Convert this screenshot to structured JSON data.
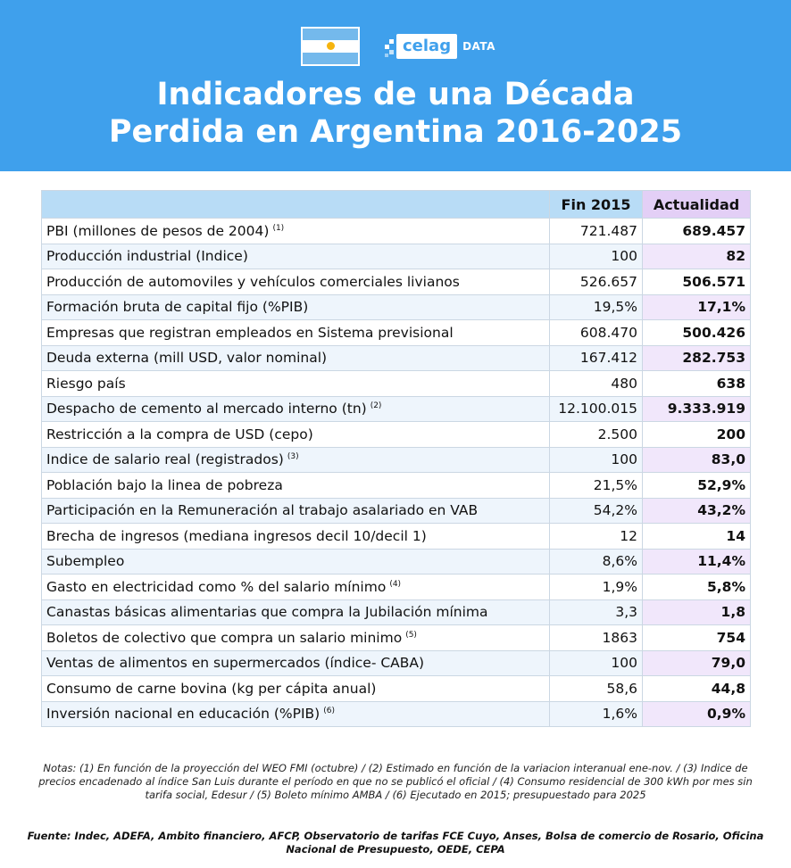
{
  "header": {
    "logo": {
      "brand": "celag",
      "suffix": "DATA"
    },
    "title_line1": "Indicadores de una Década",
    "title_line2": "Perdida en Argentina 2016-2025",
    "colors": {
      "header_bg": "#3fa0ec",
      "flag_blue": "#74b9ec",
      "flag_sun": "#f6b40e"
    }
  },
  "table": {
    "columns": [
      "",
      "Fin 2015",
      "Actualidad"
    ],
    "rows": [
      {
        "label": "PBI (millones de pesos de 2004)",
        "note": "(1)",
        "fin2015": "721.487",
        "actualidad": "689.457"
      },
      {
        "label": "Producción industrial (Indice)",
        "note": "",
        "fin2015": "100",
        "actualidad": "82"
      },
      {
        "label": "Producción de automoviles y vehículos comerciales livianos",
        "note": "",
        "fin2015": "526.657",
        "actualidad": "506.571"
      },
      {
        "label": "Formación bruta de capital fijo (%PIB)",
        "note": "",
        "fin2015": "19,5%",
        "actualidad": "17,1%"
      },
      {
        "label": "Empresas que registran empleados en Sistema previsional",
        "note": "",
        "fin2015": "608.470",
        "actualidad": "500.426"
      },
      {
        "label": "Deuda externa (mill USD, valor nominal)",
        "note": "",
        "fin2015": "167.412",
        "actualidad": "282.753"
      },
      {
        "label": "Riesgo país",
        "note": "",
        "fin2015": "480",
        "actualidad": "638"
      },
      {
        "label": "Despacho de cemento al mercado interno (tn)",
        "note": "(2)",
        "fin2015": "12.100.015",
        "actualidad": "9.333.919"
      },
      {
        "label": "Restricción a la compra de USD (cepo)",
        "note": "",
        "fin2015": "2.500",
        "actualidad": "200"
      },
      {
        "label": "Indice de salario real (registrados)",
        "note": "(3)",
        "fin2015": "100",
        "actualidad": "83,0"
      },
      {
        "label": "Población bajo la linea de pobreza",
        "note": "",
        "fin2015": "21,5%",
        "actualidad": "52,9%"
      },
      {
        "label": "Participación en la Remuneración al trabajo asalariado en VAB",
        "note": "",
        "fin2015": "54,2%",
        "actualidad": "43,2%"
      },
      {
        "label": "Brecha de ingresos (mediana ingresos decil 10/decil 1)",
        "note": "",
        "fin2015": "12",
        "actualidad": "14"
      },
      {
        "label": "Subempleo",
        "note": "",
        "fin2015": "8,6%",
        "actualidad": "11,4%"
      },
      {
        "label": "Gasto en electricidad como % del salario mínimo",
        "note": "(4)",
        "fin2015": "1,9%",
        "actualidad": "5,8%"
      },
      {
        "label": "Canastas básicas alimentarias que compra la Jubilación mínima",
        "note": "",
        "fin2015": "3,3",
        "actualidad": "1,8"
      },
      {
        "label": "Boletos de colectivo que compra un salario minimo",
        "note": "(5)",
        "fin2015": "1863",
        "actualidad": "754"
      },
      {
        "label": "Ventas de alimentos  en supermercados (índice- CABA)",
        "note": "",
        "fin2015": "100",
        "actualidad": "79,0"
      },
      {
        "label": "Consumo de carne bovina (kg per cápita anual)",
        "note": "",
        "fin2015": "58,6",
        "actualidad": "44,8"
      },
      {
        "label": "Inversión nacional en educación (%PIB)",
        "note": "(6)",
        "fin2015": "1,6%",
        "actualidad": "0,9%"
      }
    ]
  },
  "notes": "Notas: (1) En función de la proyección del WEO FMI (octubre) / (2) Estimado en función de la variacion interanual ene-nov.  / (3) Indice de precios encadenado al índice San Luis durante el período en que no se publicó el oficial / (4) Consumo residencial de 300 kWh por mes sin tarifa social, Edesur / (5) Boleto mínimo AMBA / (6) Ejecutado en 2015; presupuestado para 2025",
  "source": "Fuente: Indec, ADEFA, Ambito financiero, AFCP, Observatorio de tarifas FCE Cuyo, Anses, Bolsa de comercio de Rosario, Oficina Nacional de Presupuesto, OEDE, CEPA"
}
